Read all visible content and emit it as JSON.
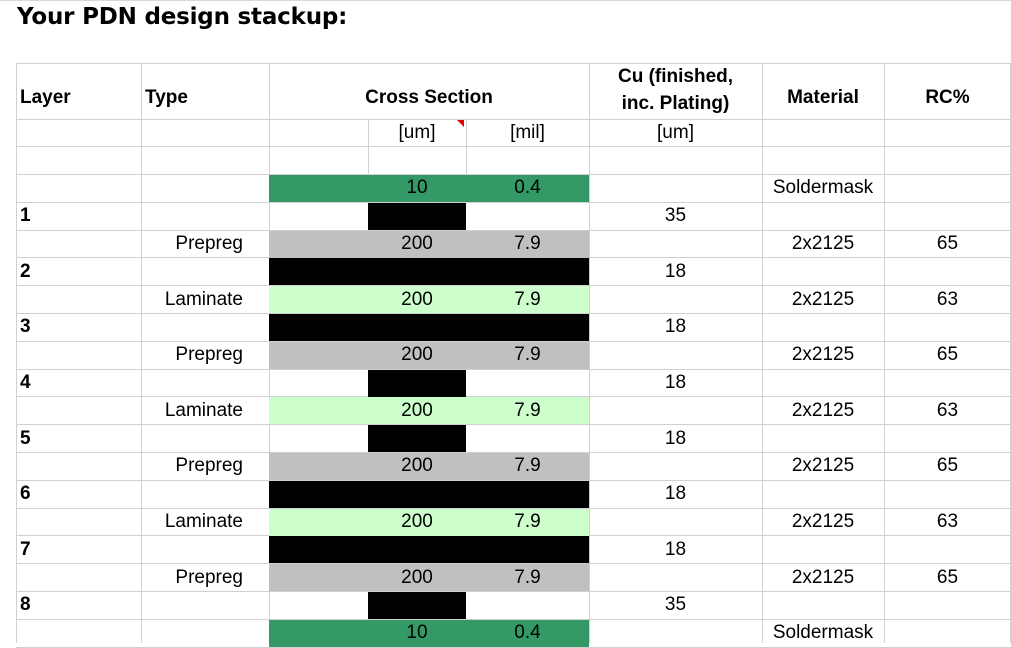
{
  "title": "Your PDN design stackup:",
  "colors": {
    "soldermask": "#339966",
    "prepreg": "#c0c0c0",
    "laminate": "#ccffcc",
    "copper": "#000000",
    "gridline": "#d0d0d0"
  },
  "headers": {
    "layer": "Layer",
    "type": "Type",
    "cross_section": "Cross Section",
    "cu_line1": "Cu (finished,",
    "cu_line2": "inc. Plating)",
    "material": "Material",
    "rc": "RC%"
  },
  "units": {
    "um": "[um]",
    "mil": "[mil]",
    "cu_um": "[um]"
  },
  "rows": [
    {
      "kind": "dielectric",
      "fill": "soldermask",
      "layer": "",
      "type": "",
      "um": "10",
      "mil": "0.4",
      "cu": "",
      "material": "Soldermask",
      "rc": ""
    },
    {
      "kind": "copper",
      "span": "narrow",
      "layer": "1",
      "type": "",
      "um": "",
      "mil": "",
      "cu": "35",
      "material": "",
      "rc": ""
    },
    {
      "kind": "dielectric",
      "fill": "prepreg",
      "layer": "",
      "type": "Prepreg",
      "um": "200",
      "mil": "7.9",
      "cu": "",
      "material": "2x2125",
      "rc": "65"
    },
    {
      "kind": "copper",
      "span": "wide",
      "layer": "2",
      "type": "",
      "um": "",
      "mil": "",
      "cu": "18",
      "material": "",
      "rc": ""
    },
    {
      "kind": "dielectric",
      "fill": "laminate",
      "layer": "",
      "type": "Laminate",
      "um": "200",
      "mil": "7.9",
      "cu": "",
      "material": "2x2125",
      "rc": "63"
    },
    {
      "kind": "copper",
      "span": "wide",
      "layer": "3",
      "type": "",
      "um": "",
      "mil": "",
      "cu": "18",
      "material": "",
      "rc": ""
    },
    {
      "kind": "dielectric",
      "fill": "prepreg",
      "layer": "",
      "type": "Prepreg",
      "um": "200",
      "mil": "7.9",
      "cu": "",
      "material": "2x2125",
      "rc": "65"
    },
    {
      "kind": "copper",
      "span": "narrow",
      "layer": "4",
      "type": "",
      "um": "",
      "mil": "",
      "cu": "18",
      "material": "",
      "rc": ""
    },
    {
      "kind": "dielectric",
      "fill": "laminate",
      "layer": "",
      "type": "Laminate",
      "um": "200",
      "mil": "7.9",
      "cu": "",
      "material": "2x2125",
      "rc": "63"
    },
    {
      "kind": "copper",
      "span": "narrow",
      "layer": "5",
      "type": "",
      "um": "",
      "mil": "",
      "cu": "18",
      "material": "",
      "rc": ""
    },
    {
      "kind": "dielectric",
      "fill": "prepreg",
      "layer": "",
      "type": "Prepreg",
      "um": "200",
      "mil": "7.9",
      "cu": "",
      "material": "2x2125",
      "rc": "65"
    },
    {
      "kind": "copper",
      "span": "wide",
      "layer": "6",
      "type": "",
      "um": "",
      "mil": "",
      "cu": "18",
      "material": "",
      "rc": ""
    },
    {
      "kind": "dielectric",
      "fill": "laminate",
      "layer": "",
      "type": "Laminate",
      "um": "200",
      "mil": "7.9",
      "cu": "",
      "material": "2x2125",
      "rc": "63"
    },
    {
      "kind": "copper",
      "span": "wide",
      "layer": "7",
      "type": "",
      "um": "",
      "mil": "",
      "cu": "18",
      "material": "",
      "rc": ""
    },
    {
      "kind": "dielectric",
      "fill": "prepreg",
      "layer": "",
      "type": "Prepreg",
      "um": "200",
      "mil": "7.9",
      "cu": "",
      "material": "2x2125",
      "rc": "65"
    },
    {
      "kind": "copper",
      "span": "narrow",
      "layer": "8",
      "type": "",
      "um": "",
      "mil": "",
      "cu": "35",
      "material": "",
      "rc": ""
    },
    {
      "kind": "dielectric",
      "fill": "soldermask",
      "layer": "",
      "type": "",
      "um": "10",
      "mil": "0.4",
      "cu": "",
      "material": "Soldermask",
      "rc": ""
    }
  ]
}
